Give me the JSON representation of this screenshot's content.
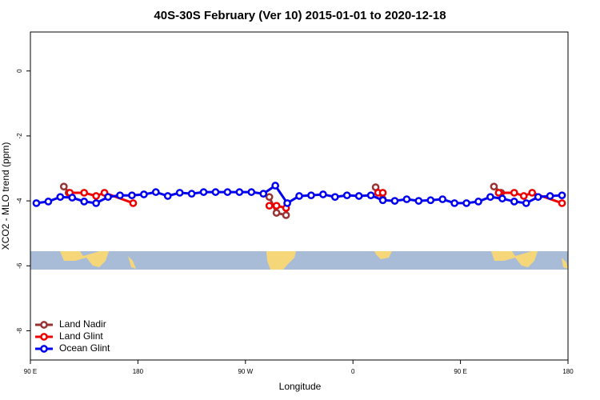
{
  "chart_data": {
    "type": "line",
    "title": "40S-30S February (Ver 10)   2015-01-01 to 2020-12-18",
    "xlabel": "Longitude",
    "ylabel": "XCO2 - MLO trend (ppm)",
    "xlim": [
      90,
      540
    ],
    "ylim": [
      -8.9,
      1.2
    ],
    "xticks": [
      {
        "value": 90,
        "label": "90 E"
      },
      {
        "value": 180,
        "label": "180"
      },
      {
        "value": 270,
        "label": "90 W"
      },
      {
        "value": 360,
        "label": "0"
      },
      {
        "value": 450,
        "label": "90 E"
      },
      {
        "value": 540,
        "label": "180"
      }
    ],
    "yticks": [
      0,
      -2,
      -4,
      -6,
      -8
    ],
    "legend": "bottom-left",
    "series": [
      {
        "name": "Land Nadir",
        "color": "#993333",
        "x": [
          118,
          122,
          null,
          290,
          296,
          304,
          null,
          379,
          385,
          null,
          478,
          484
        ],
        "values": [
          -3.56,
          -3.75,
          null,
          -3.88,
          -4.37,
          -4.44,
          null,
          -3.58,
          -3.95,
          null,
          -3.56,
          -3.75
        ]
      },
      {
        "name": "Land Glint",
        "color": "#ee0000",
        "x": [
          123,
          135,
          145,
          152,
          176,
          null,
          290,
          296,
          304,
          null,
          381,
          385,
          null,
          482,
          495,
          503,
          510,
          535
        ],
        "values": [
          -3.75,
          -3.75,
          -3.85,
          -3.75,
          -4.07,
          null,
          -4.15,
          -4.15,
          -4.22,
          null,
          -3.75,
          -3.75,
          null,
          -3.75,
          -3.75,
          -3.85,
          -3.75,
          -4.07
        ]
      },
      {
        "name": "Ocean Glint",
        "color": "#0000ee",
        "x": [
          95,
          105,
          115,
          125,
          135,
          145,
          155,
          165,
          175,
          185,
          195,
          205,
          215,
          225,
          235,
          245,
          255,
          265,
          275,
          285,
          295,
          305,
          315,
          325,
          335,
          345,
          355,
          365,
          375,
          385,
          395,
          405,
          415,
          425,
          435,
          445,
          455,
          465,
          475,
          485,
          495,
          505,
          515,
          525,
          535
        ],
        "values": [
          -4.07,
          -4.02,
          -3.88,
          -3.9,
          -4.02,
          -4.07,
          -3.88,
          -3.83,
          -3.83,
          -3.8,
          -3.73,
          -3.85,
          -3.75,
          -3.78,
          -3.73,
          -3.73,
          -3.73,
          -3.73,
          -3.73,
          -3.78,
          -3.53,
          -4.07,
          -3.85,
          -3.83,
          -3.8,
          -3.88,
          -3.83,
          -3.85,
          -3.83,
          -3.98,
          -4.0,
          -3.95,
          -4.0,
          -3.98,
          -3.95,
          -4.07,
          -4.07,
          -4.02,
          -3.88,
          -3.93,
          -4.02,
          -4.07,
          -3.88,
          -3.85,
          -3.83
        ]
      }
    ]
  }
}
